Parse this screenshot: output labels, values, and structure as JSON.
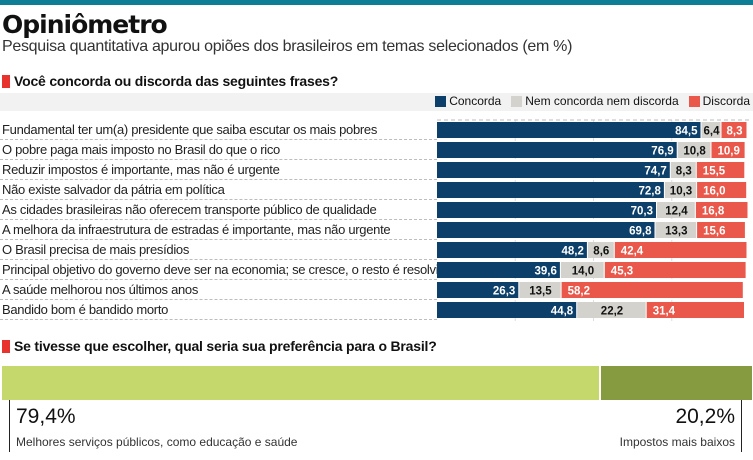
{
  "header": {
    "title": "Opiniômetro",
    "subtitle": "Pesquisa quantitativa apurou opiões dos brasileiros em temas selecionados (em %)"
  },
  "section1": {
    "title": "Você concorda ou discorda das seguintes frases?"
  },
  "section2": {
    "title": "Se tivesse que escolher, qual seria sua preferência para o Brasil?"
  },
  "colors": {
    "concorda": "#0d3f6b",
    "neutro": "#d3d2cd",
    "discorda": "#e9584a",
    "light_green": "#c5d86b",
    "dark_green": "#869a3f",
    "accent": "#0e7d96"
  },
  "chart_data": [
    {
      "type": "bar",
      "orientation": "horizontal-stacked",
      "title": "Você concorda ou discorda das seguintes frases?",
      "xlim": [
        0,
        100
      ],
      "grid": true,
      "legend": "top-right",
      "legend_entries": [
        "Concorda",
        "Nem concorda nem discorda",
        "Discorda"
      ],
      "categories": [
        "Fundamental ter um(a) presidente que saiba escutar os mais pobres",
        "O pobre paga mais imposto no Brasil do que o rico",
        "Reduzir impostos é importante, mas não é urgente",
        "Não existe salvador da pátria em política",
        "As cidades brasileiras não oferecem transporte público de qualidade",
        "A melhora da infraestrutura de estradas é importante, mas não urgente",
        "O Brasil precisa de mais presídios",
        "Principal objetivo do governo deve ser na economia; se cresce, o resto é resolvido",
        "A saúde melhorou nos últimos anos",
        "Bandido bom é bandido morto"
      ],
      "series": [
        {
          "name": "Concorda",
          "values": [
            84.5,
            76.9,
            74.7,
            72.8,
            70.3,
            69.8,
            48.2,
            39.6,
            26.3,
            44.8
          ],
          "labels": [
            "84,5",
            "76,9",
            "74,7",
            "72,8",
            "70,3",
            "69,8",
            "48,2",
            "39,6",
            "26,3",
            "44,8"
          ]
        },
        {
          "name": "Nem concorda nem discorda",
          "values": [
            6.4,
            10.8,
            8.3,
            10.3,
            12.4,
            13.3,
            8.6,
            14.0,
            13.5,
            22.2
          ],
          "labels": [
            "6,4",
            "10,8",
            "8,3",
            "10,3",
            "12,4",
            "13,3",
            "8,6",
            "14,0",
            "13,5",
            "22,2"
          ]
        },
        {
          "name": "Discorda",
          "values": [
            8.3,
            10.9,
            15.5,
            16.0,
            16.8,
            15.6,
            42.4,
            45.3,
            58.2,
            31.4
          ],
          "labels": [
            "8,3",
            "10,9",
            "15,5",
            "16,0",
            "16,8",
            "15,6",
            "42,4",
            "45,3",
            "58,2",
            "31,4"
          ]
        }
      ]
    },
    {
      "type": "bar",
      "orientation": "horizontal-stacked",
      "title": "Se tivesse que escolher, qual seria sua preferência para o Brasil?",
      "categories": [
        "Melhores serviços públicos, como educação e saúde",
        "Impostos mais baixos"
      ],
      "values": [
        79.4,
        20.2
      ],
      "labels": [
        "79,4%",
        "20,2%"
      ]
    }
  ]
}
